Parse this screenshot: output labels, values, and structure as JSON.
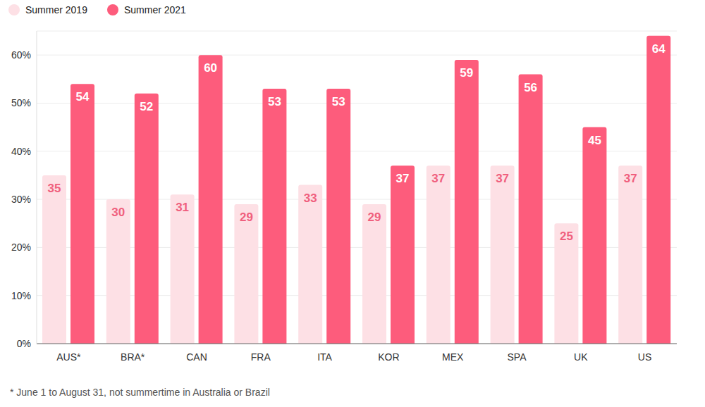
{
  "chart_data": {
    "type": "bar",
    "categories": [
      "AUS*",
      "BRA*",
      "CAN",
      "FRA",
      "ITA",
      "KOR",
      "MEX",
      "SPA",
      "UK",
      "US"
    ],
    "series": [
      {
        "name": "Summer 2019",
        "color": "#fde0e5",
        "values": [
          35,
          30,
          31,
          29,
          33,
          29,
          37,
          37,
          25,
          37
        ]
      },
      {
        "name": "Summer 2021",
        "color": "#fd5c7c",
        "values": [
          54,
          52,
          60,
          53,
          53,
          37,
          59,
          56,
          45,
          64
        ]
      }
    ],
    "ylim": [
      0,
      65
    ],
    "yticks": [
      {
        "value": 0,
        "label": "0%"
      },
      {
        "value": 10,
        "label": "10%"
      },
      {
        "value": 20,
        "label": "20%"
      },
      {
        "value": 30,
        "label": "30%"
      },
      {
        "value": 40,
        "label": "40%"
      },
      {
        "value": 50,
        "label": "50%"
      },
      {
        "value": 60,
        "label": "60%"
      }
    ],
    "grid": true,
    "legend": "top-left",
    "data_labels": true,
    "annotations": [
      "* June 1 to August 31, not summertime in Australia or Brazil"
    ]
  }
}
